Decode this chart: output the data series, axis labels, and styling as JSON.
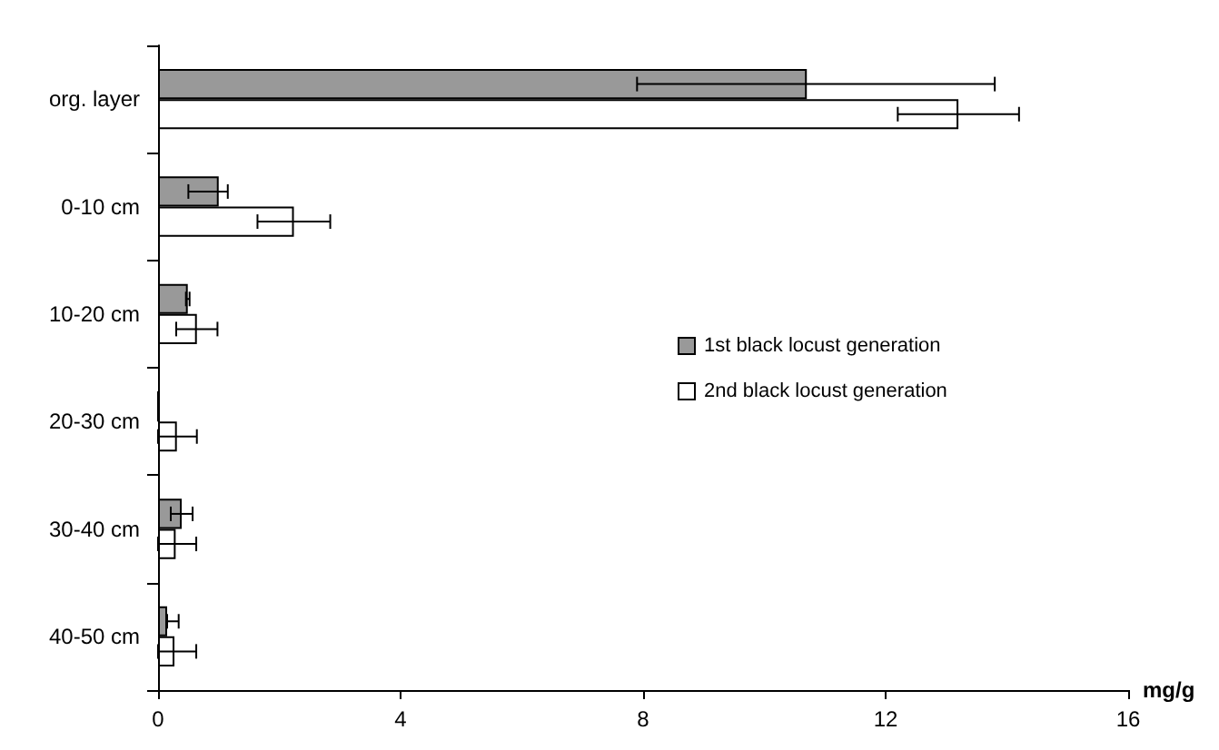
{
  "chart_data": {
    "type": "bar",
    "orientation": "horizontal",
    "xlabel": "mg/g",
    "categories": [
      "org. layer",
      "0-10 cm",
      "10-20 cm",
      "20-30 cm",
      "30-40 cm",
      "40-50 cm"
    ],
    "series": [
      {
        "name": "1st black locust generation",
        "color": "#999999",
        "values": [
          10.7,
          1.0,
          0.49,
          0,
          0.39,
          0.15
        ],
        "errors": [
          [
            7.9,
            13.8
          ],
          [
            0.5,
            1.15
          ],
          0.03,
          null,
          0.18,
          [
            0.15,
            0.34
          ]
        ]
      },
      {
        "name": "2nd black locust generation",
        "color": "#ffffff",
        "values": [
          13.2,
          2.24,
          0.64,
          0.31,
          0.29,
          0.27
        ],
        "errors": [
          1.0,
          0.6,
          0.34,
          [
            0,
            0.64
          ],
          [
            0,
            0.63
          ],
          [
            0,
            0.63
          ]
        ]
      }
    ],
    "xlim": [
      0,
      16
    ],
    "xticks": [
      0,
      4,
      8,
      12,
      16
    ],
    "grid": false,
    "legend": "right"
  }
}
